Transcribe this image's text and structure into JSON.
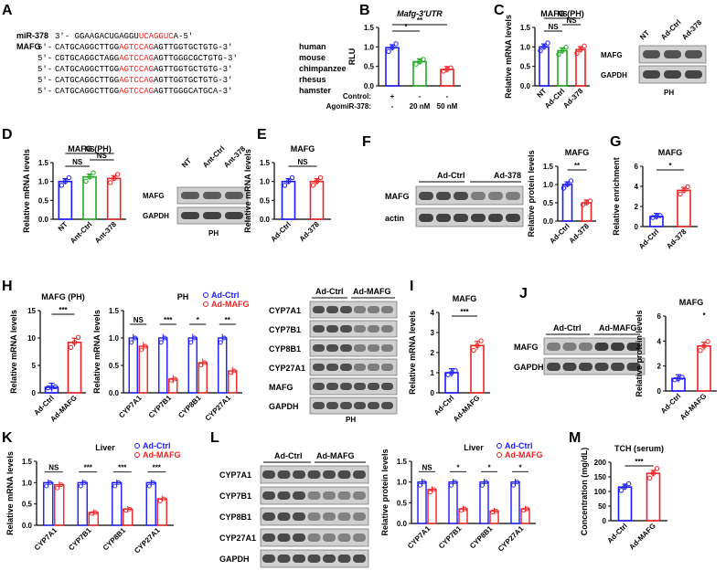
{
  "panels": {
    "A": "A",
    "B": "B",
    "C": "C",
    "D": "D",
    "E": "E",
    "F": "F",
    "G": "G",
    "H": "H",
    "I": "I",
    "J": "J",
    "K": "K",
    "L": "L",
    "M": "M"
  },
  "colors": {
    "blue": "#1a1aff",
    "green": "#22aa22",
    "red": "#ee2222",
    "darkred": "#d01010"
  },
  "seq": {
    "mir_label": "miR-378",
    "mir_pre": "3'- GGAAGACUGAGGU",
    "mir_hl": "UCAGGUC",
    "mir_post": "A-5'",
    "gene_label": "MAFG",
    "rows": [
      {
        "prime": "5'-",
        "pre": "CATGCAGGCTTGG",
        "hl": "AGTCCAG",
        "post": "AGTTGGTGCTGTG-3'",
        "species": "human"
      },
      {
        "prime": "5'-",
        "pre": "CGTGCAGGCTAGG",
        "hl": "AGTCCAG",
        "post": "AGTTGGGCGCTGTG-3'",
        "species": "mouse"
      },
      {
        "prime": "5'-",
        "pre": "CATGCAGGCTTGG",
        "hl": "AGTCCAG",
        "post": "AGTTGGTGCTGTG-3'",
        "species": "chimpanzee"
      },
      {
        "prime": "5'-",
        "pre": "CATGCAGGCTTGG",
        "hl": "AGTCCAG",
        "post": "AGTTGGTGCTGTG-3'",
        "species": "rhesus"
      },
      {
        "prime": "5'-",
        "pre": "CATGCAGGCTTGG",
        "hl": "AGTCCAG",
        "post": "AGTTGGGCATGCA-3'",
        "species": "hamster"
      }
    ]
  },
  "blots": {
    "C": {
      "cols": [
        "NT",
        "Ad-Ctrl",
        "Ad-378"
      ],
      "rows": [
        "MAFG",
        "GAPDH"
      ],
      "caption": "PH"
    },
    "D": {
      "cols": [
        "NT",
        "Ant-Ctrl",
        "Ant-378"
      ],
      "rows": [
        "MAFG",
        "GAPDH"
      ],
      "caption": "PH"
    },
    "F": {
      "groups": [
        "Ad-Ctrl",
        "Ad-378"
      ],
      "rows": [
        "MAFG",
        "actin"
      ]
    },
    "H": {
      "groups": [
        "Ad-Ctrl",
        "Ad-MAFG"
      ],
      "rows": [
        "CYP7A1",
        "CYP7B1",
        "CYP8B1",
        "CYP27A1",
        "MAFG",
        "GAPDH"
      ],
      "caption": "PH"
    },
    "J": {
      "groups": [
        "Ad-Ctrl",
        "Ad-MAFG"
      ],
      "rows": [
        "MAFG",
        "GAPDH"
      ]
    },
    "L": {
      "groups": [
        "Ad-Ctrl",
        "Ad-MAFG"
      ],
      "rows": [
        "CYP7A1",
        "CYP7B1",
        "CYP8B1",
        "CYP27A1",
        "GAPDH"
      ]
    }
  },
  "chart_data": [
    {
      "id": "B",
      "type": "bar",
      "title": "Mafg-3'UTR",
      "ylabel": "RLU",
      "ylim": [
        0,
        1.5
      ],
      "yticks": [
        "0.0",
        "0.5",
        "1.0",
        "1.5"
      ],
      "categories": [
        "",
        "",
        ""
      ],
      "values": [
        0.98,
        0.62,
        0.42
      ],
      "colors": [
        "#1a1aff",
        "#22aa22",
        "#ee2222"
      ],
      "table": {
        "rows": [
          {
            "label": "Control:",
            "cells": [
              "+",
              "-",
              "-"
            ]
          },
          {
            "label": "AgomiR-378:",
            "cells": [
              "-",
              "20 nM",
              "50 nM"
            ]
          }
        ]
      },
      "sig": [
        {
          "a": 0,
          "b": 1,
          "label": "*"
        },
        {
          "a": 0,
          "b": 2,
          "label": "**"
        }
      ]
    },
    {
      "id": "C",
      "type": "bar",
      "title": "MAFG (PH)",
      "ylabel": "Relative mRNA levels",
      "ylim": [
        0,
        1.5
      ],
      "yticks": [
        "0.0",
        "0.5",
        "1.0",
        "1.5"
      ],
      "categories": [
        "NT",
        "Ad-Ctrl",
        "Ad-378"
      ],
      "values": [
        1.0,
        0.9,
        0.93
      ],
      "colors": [
        "#1a1aff",
        "#22aa22",
        "#ee2222"
      ],
      "sig": [
        {
          "a": 0,
          "b": 1,
          "label": "NS"
        },
        {
          "a": 1,
          "b": 2,
          "label": "NS"
        },
        {
          "a": 0,
          "b": 2,
          "label": "NS"
        }
      ]
    },
    {
      "id": "D",
      "type": "bar",
      "title": "MAFG (PH)",
      "ylabel": "Relative mRNA levels",
      "ylim": [
        0,
        1.5
      ],
      "yticks": [
        "0.0",
        "0.5",
        "1.0",
        "1.5"
      ],
      "categories": [
        "NT",
        "Ant-Ctrl",
        "Ant-378"
      ],
      "values": [
        1.0,
        1.12,
        1.08
      ],
      "colors": [
        "#1a1aff",
        "#22aa22",
        "#ee2222"
      ],
      "sig": [
        {
          "a": 0,
          "b": 1,
          "label": "NS"
        },
        {
          "a": 1,
          "b": 2,
          "label": "NS"
        },
        {
          "a": 0,
          "b": 2,
          "label": "NS"
        }
      ]
    },
    {
      "id": "E",
      "type": "bar",
      "title": "MAFG",
      "ylabel": "Relative mRNA levels",
      "ylim": [
        0,
        1.5
      ],
      "yticks": [
        "0.0",
        "0.5",
        "1.0",
        "1.5"
      ],
      "categories": [
        "Ad-Ctrl",
        "Ad-378"
      ],
      "values": [
        1.0,
        1.0
      ],
      "colors": [
        "#1a1aff",
        "#ee2222"
      ],
      "sig": [
        {
          "a": 0,
          "b": 1,
          "label": "NS"
        }
      ]
    },
    {
      "id": "F",
      "type": "bar",
      "title": "MAFG",
      "ylabel": "Relative protein levels",
      "ylim": [
        0,
        1.5
      ],
      "yticks": [
        "0.0",
        "0.5",
        "1.0",
        "1.5"
      ],
      "categories": [
        "Ad-Ctrl",
        "Ad-378"
      ],
      "values": [
        1.0,
        0.5
      ],
      "colors": [
        "#1a1aff",
        "#ee2222"
      ],
      "sig": [
        {
          "a": 0,
          "b": 1,
          "label": "**"
        }
      ]
    },
    {
      "id": "G",
      "type": "bar",
      "title": "MAFG",
      "ylabel": "Relative enrichment",
      "ylim": [
        0,
        6
      ],
      "yticks": [
        "0",
        "2",
        "4",
        "6"
      ],
      "categories": [
        "Ad-Ctrl",
        "Ad-378"
      ],
      "values": [
        1.0,
        3.6
      ],
      "colors": [
        "#1a1aff",
        "#ee2222"
      ],
      "sig": [
        {
          "a": 0,
          "b": 1,
          "label": "*"
        }
      ]
    },
    {
      "id": "H1",
      "type": "bar",
      "title": "MAFG (PH)",
      "ylabel": "Relative mRNA levels",
      "ylim": [
        0,
        15
      ],
      "yticks": [
        "0",
        "5",
        "10",
        "15"
      ],
      "categories": [
        "Ad-Ctrl",
        "Ad-MAFG"
      ],
      "values": [
        1.0,
        9.2
      ],
      "colors": [
        "#1a1aff",
        "#ee2222"
      ],
      "sig": [
        {
          "a": 0,
          "b": 1,
          "label": "***"
        }
      ]
    },
    {
      "id": "H2",
      "type": "grouped-bar",
      "title": "PH",
      "ylabel": "Relative mRNA levels",
      "ylim": [
        0,
        1.5
      ],
      "yticks": [
        "0.0",
        "0.5",
        "1.0",
        "1.5"
      ],
      "categories": [
        "CYP7A1",
        "CYP7B1",
        "CYP8B1",
        "CYP27A1"
      ],
      "series": [
        {
          "name": "Ad-Ctrl",
          "values": [
            1.0,
            1.0,
            1.0,
            1.0
          ]
        },
        {
          "name": "Ad-MAFG",
          "values": [
            0.85,
            0.25,
            0.55,
            0.4
          ]
        }
      ],
      "sig": [
        "NS",
        "***",
        "*",
        "**"
      ]
    },
    {
      "id": "I",
      "type": "bar",
      "title": "MAFG",
      "ylabel": "Relative mRNA levels",
      "ylim": [
        0,
        4
      ],
      "yticks": [
        "0",
        "1",
        "2",
        "3",
        "4"
      ],
      "categories": [
        "Ad-Ctrl",
        "Ad-MAFG"
      ],
      "values": [
        1.0,
        2.35
      ],
      "colors": [
        "#1a1aff",
        "#ee2222"
      ],
      "sig": [
        {
          "a": 0,
          "b": 1,
          "label": "***"
        }
      ]
    },
    {
      "id": "J",
      "type": "bar",
      "title": "MAFG",
      "ylabel": "Relative protein levels",
      "ylim": [
        0,
        6
      ],
      "yticks": [
        "0",
        "2",
        "4",
        "6"
      ],
      "categories": [
        "Ad-Ctrl",
        "Ad-MAFG"
      ],
      "values": [
        1.0,
        3.6
      ],
      "colors": [
        "#1a1aff",
        "#ee2222"
      ],
      "sig": [
        {
          "a": 1,
          "b": 1,
          "label": "*"
        }
      ]
    },
    {
      "id": "K",
      "type": "grouped-bar",
      "title": "Liver",
      "ylabel": "Relative mRNA levels",
      "ylim": [
        0,
        1.5
      ],
      "yticks": [
        "0.0",
        "0.5",
        "1.0",
        "1.5"
      ],
      "categories": [
        "CYP7A1",
        "CYP7B1",
        "CYP8B1",
        "CYP27A1"
      ],
      "series": [
        {
          "name": "Ad-Ctrl",
          "values": [
            1.0,
            1.0,
            1.0,
            1.0
          ]
        },
        {
          "name": "Ad-MAFG",
          "values": [
            0.95,
            0.3,
            0.38,
            0.62
          ]
        }
      ],
      "sig": [
        "NS",
        "***",
        "***",
        "***"
      ]
    },
    {
      "id": "L",
      "type": "grouped-bar",
      "title": "Liver",
      "ylabel": "Relative protein levels",
      "ylim": [
        0,
        1.5
      ],
      "yticks": [
        "0.0",
        "0.5",
        "1.0",
        "1.5"
      ],
      "categories": [
        "CYP7A1",
        "CYP7B1",
        "CYP8B1",
        "CYP27A1"
      ],
      "series": [
        {
          "name": "Ad-Ctrl",
          "values": [
            1.0,
            1.0,
            1.0,
            1.0
          ]
        },
        {
          "name": "Ad-MAFG",
          "values": [
            0.82,
            0.35,
            0.3,
            0.35
          ]
        }
      ],
      "sig": [
        "NS",
        "*",
        "*",
        "*"
      ]
    },
    {
      "id": "M",
      "type": "bar",
      "title": "TCH (serum)",
      "ylabel": "Concentration (mg/dL)",
      "ylim": [
        0,
        200
      ],
      "yticks": [
        "0",
        "50",
        "100",
        "150",
        "200"
      ],
      "categories": [
        "Ad-Ctrl",
        "Ad-MAFG"
      ],
      "values": [
        115,
        162
      ],
      "colors": [
        "#1a1aff",
        "#ee2222"
      ],
      "sig": [
        {
          "a": 0,
          "b": 1,
          "label": "***"
        }
      ]
    }
  ]
}
